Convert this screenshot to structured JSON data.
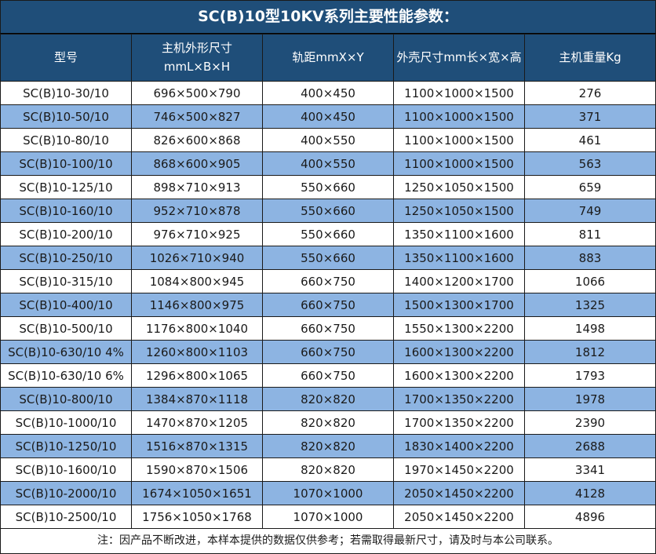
{
  "title": "SC(B)10型10KV系列主要性能参数：",
  "table": {
    "columns": [
      {
        "label": "型号"
      },
      {
        "label": "主机外形尺寸",
        "label2": "mmL×B×H"
      },
      {
        "label": "轨距mmX×Y"
      },
      {
        "label": "外壳尺寸mm长×宽×高"
      },
      {
        "label": "主机重量Kg"
      }
    ],
    "rows": [
      [
        "SC(B)10-30/10",
        "696×500×790",
        "400×450",
        "1100×1000×1500",
        "276"
      ],
      [
        "SC(B)10-50/10",
        "746×500×827",
        "400×450",
        "1100×1000×1500",
        "371"
      ],
      [
        "SC(B)10-80/10",
        "826×600×868",
        "400×550",
        "1100×1000×1500",
        "461"
      ],
      [
        "SC(B)10-100/10",
        "868×600×905",
        "400×550",
        "1100×1000×1500",
        "563"
      ],
      [
        "SC(B)10-125/10",
        "898×710×913",
        "550×660",
        "1250×1050×1500",
        "659"
      ],
      [
        "SC(B)10-160/10",
        "952×710×878",
        "550×660",
        "1250×1050×1500",
        "749"
      ],
      [
        "SC(B)10-200/10",
        "976×710×925",
        "550×660",
        "1350×1100×1600",
        "811"
      ],
      [
        "SC(B)10-250/10",
        "1026×710×940",
        "550×660",
        "1350×1100×1600",
        "883"
      ],
      [
        "SC(B)10-315/10",
        "1084×800×945",
        "660×750",
        "1400×1200×1700",
        "1066"
      ],
      [
        "SC(B)10-400/10",
        "1146×800×975",
        "660×750",
        "1500×1300×1700",
        "1325"
      ],
      [
        "SC(B)10-500/10",
        "1176×800×1040",
        "660×750",
        "1550×1300×2200",
        "1498"
      ],
      [
        "SC(B)10-630/10 4%",
        "1260×800×1103",
        "660×750",
        "1600×1300×2200",
        "1812"
      ],
      [
        "SC(B)10-630/10 6%",
        "1296×800×1065",
        "660×750",
        "1600×1300×2200",
        "1793"
      ],
      [
        "SC(B)10-800/10",
        "1384×870×1118",
        "820×820",
        "1700×1350×2200",
        "1978"
      ],
      [
        "SC(B)10-1000/10",
        "1470×870×1205",
        "820×820",
        "1700×1350×2200",
        "2390"
      ],
      [
        "SC(B)10-1250/10",
        "1516×870×1315",
        "820×820",
        "1830×1400×2200",
        "2688"
      ],
      [
        "SC(B)10-1600/10",
        "1590×870×1506",
        "820×820",
        "1970×1450×2200",
        "3341"
      ],
      [
        "SC(B)10-2000/10",
        "1674×1050×1651",
        "1070×1000",
        "2050×1450×2200",
        "4128"
      ],
      [
        "SC(B)10-2500/10",
        "1756×1050×1768",
        "1070×1000",
        "2050×1450×2200",
        "4896"
      ]
    ]
  },
  "note": "注：因产品不断改进，本样本提供的数据仅供参考；若需取得最新尺寸，请及时与本公司联系。",
  "colors": {
    "header_bg": "#1F4E79",
    "row_alt_bg": "#8DB4E2",
    "row_bg": "#FFFFFF",
    "grid": "#1A1A1A",
    "header_text": "#FFFFFF",
    "body_text": "#1A1A1A"
  }
}
